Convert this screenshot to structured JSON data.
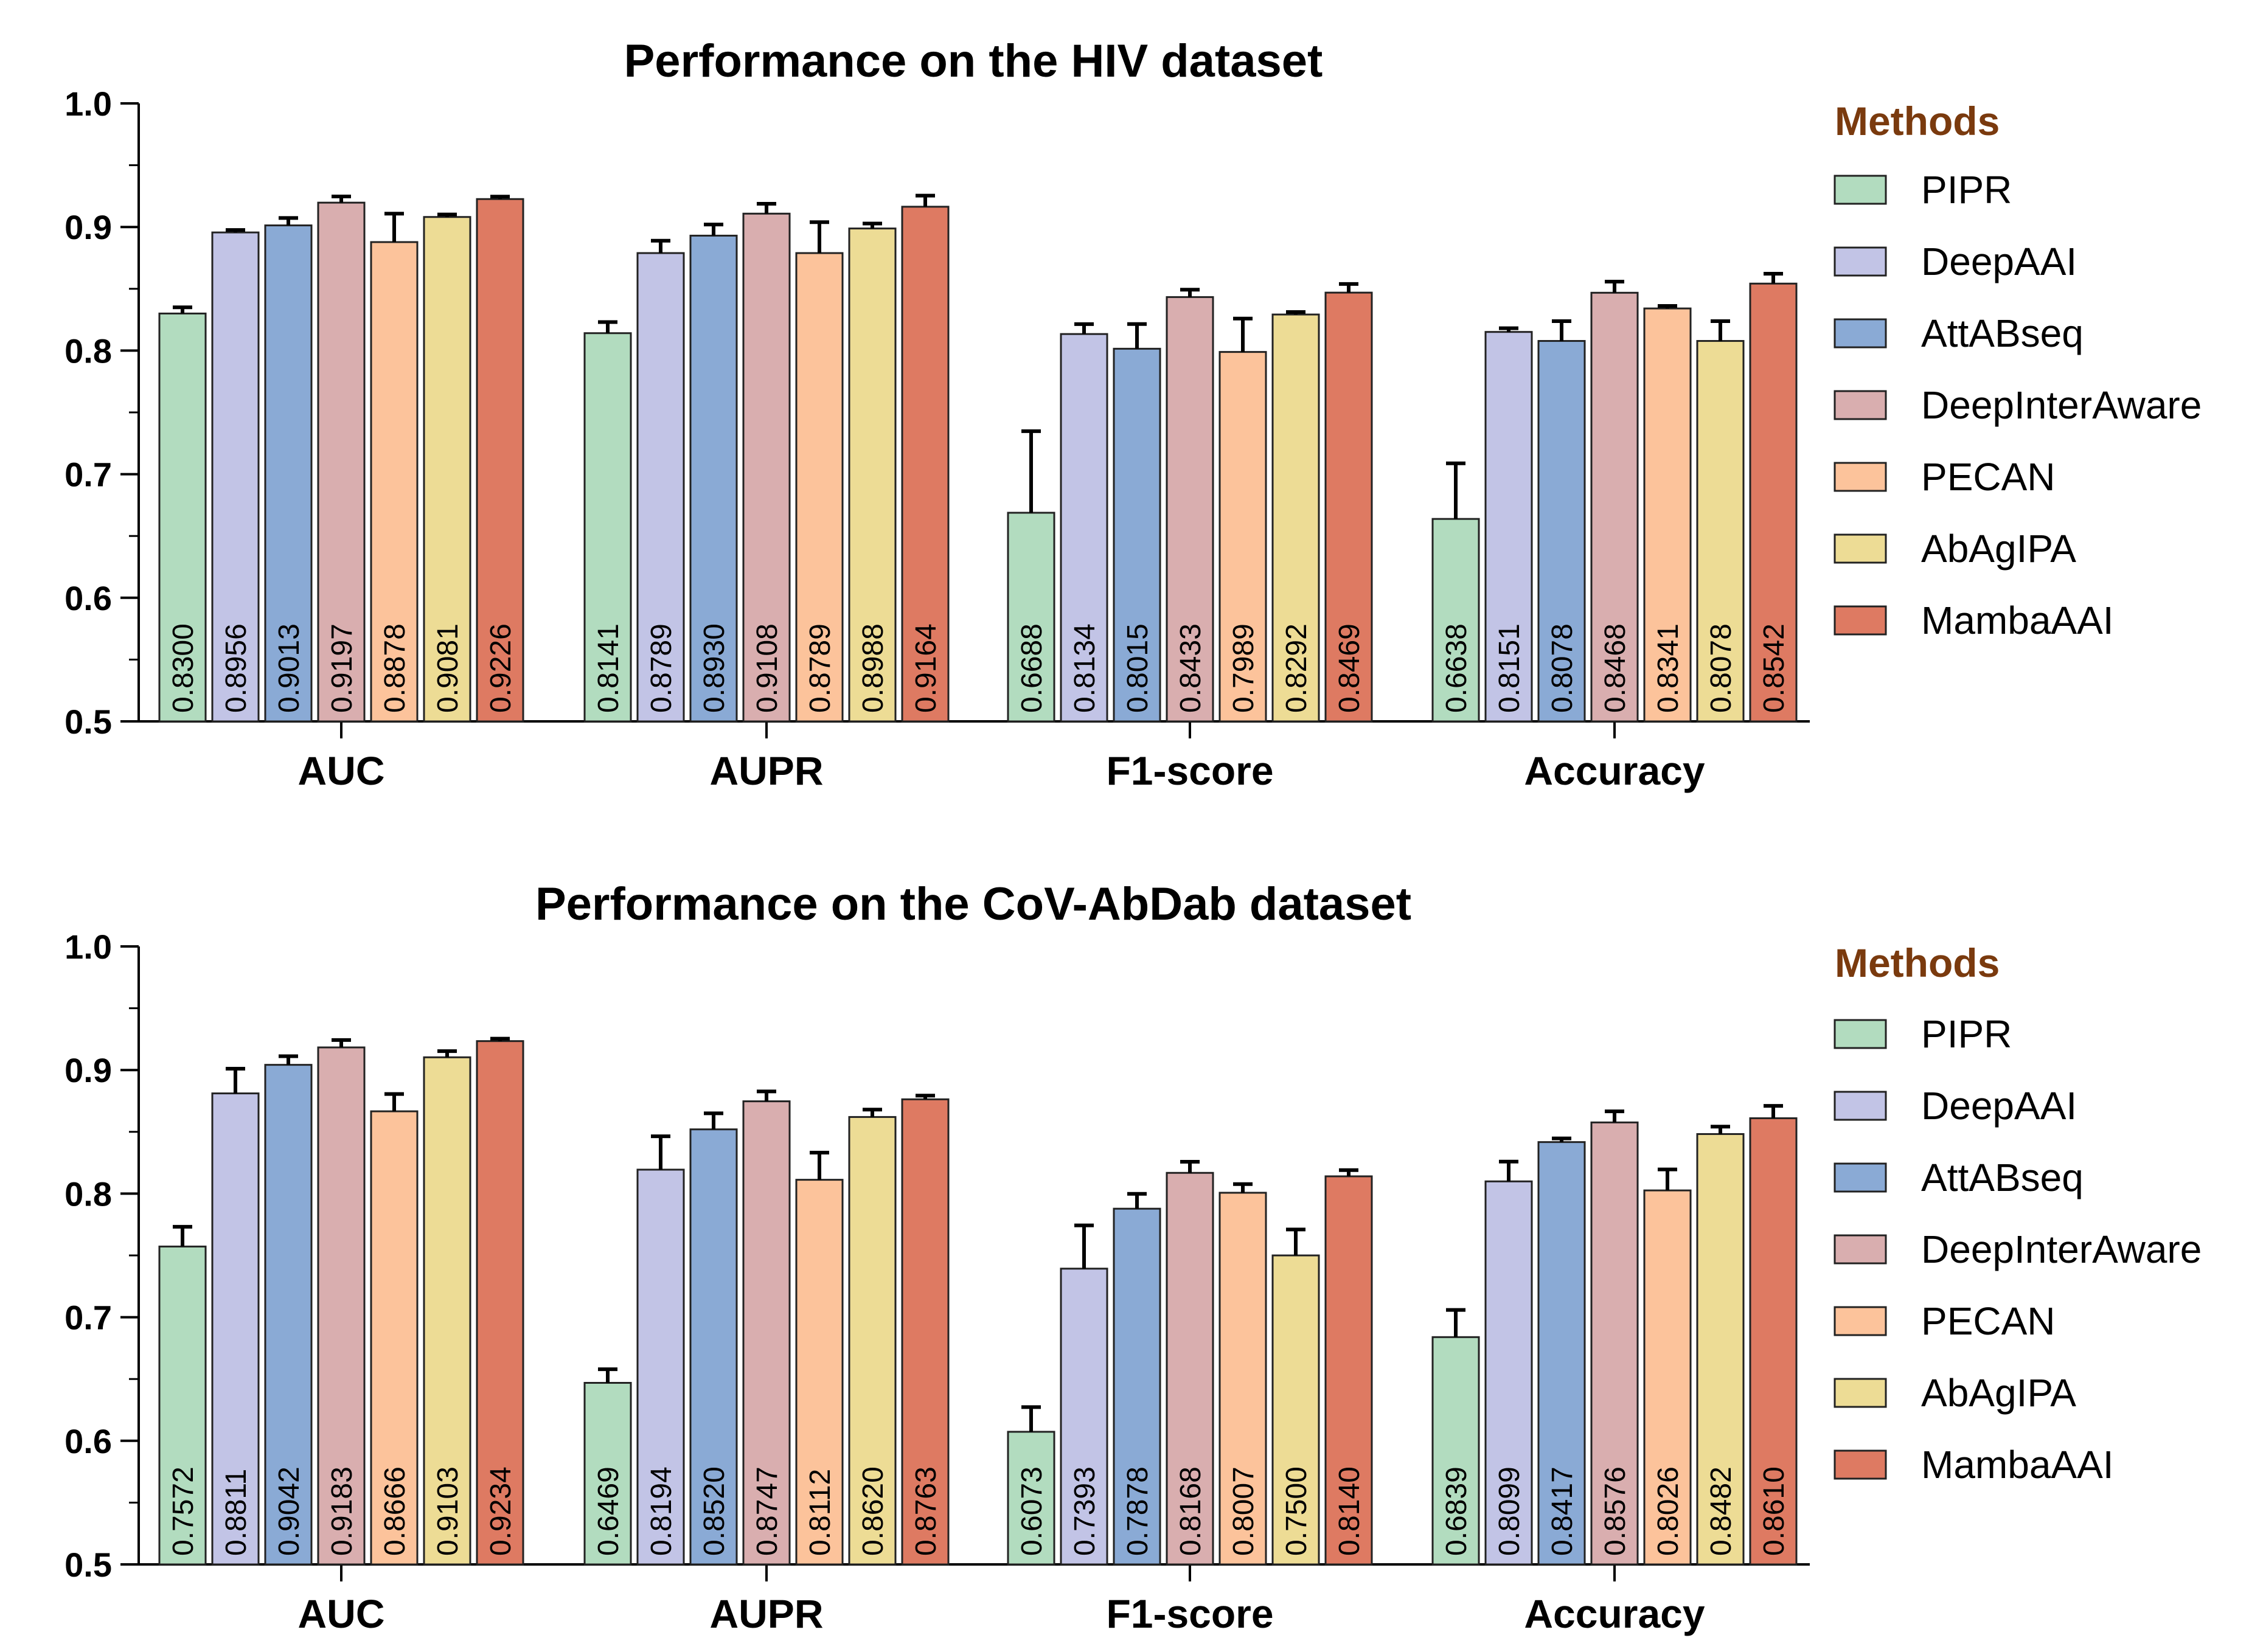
{
  "colors": {
    "PIPR": "#b2dcbf",
    "DeepAAI": "#c2c4e6",
    "AttABseq": "#8aaad5",
    "DeepInterAware": "#d9aeaf",
    "PECAN": "#fcc39b",
    "AbAgIPA": "#eddc95",
    "MambaAAI": "#de7a62",
    "legend_title": "#7a3a0e"
  },
  "chart_data": [
    {
      "type": "bar",
      "title": "Performance on the HIV dataset",
      "xlabel": "",
      "ylabel": "",
      "ylim": [
        0.5,
        1.0
      ],
      "yticks": [
        "0.5",
        "0.6",
        "0.7",
        "0.8",
        "0.9",
        "1.0"
      ],
      "categories": [
        "AUC",
        "AUPR",
        "F1-score",
        "Accuracy"
      ],
      "legend_title": "Methods",
      "legend_position": "right",
      "series": [
        {
          "name": "PIPR",
          "values": [
            0.83,
            0.8141,
            0.6688,
            0.6638
          ],
          "labels": [
            "0.8300",
            "0.8141",
            "0.6688",
            "0.6638"
          ],
          "errors": [
            0.005,
            0.009,
            0.066,
            0.045
          ]
        },
        {
          "name": "DeepAAI",
          "values": [
            0.8956,
            0.8789,
            0.8134,
            0.8151
          ],
          "labels": [
            "0.8956",
            "0.8789",
            "0.8134",
            "0.8151"
          ],
          "errors": [
            0.002,
            0.01,
            0.008,
            0.003
          ]
        },
        {
          "name": "AttABseq",
          "values": [
            0.9013,
            0.893,
            0.8015,
            0.8078
          ],
          "labels": [
            "0.9013",
            "0.8930",
            "0.8015",
            "0.8078"
          ],
          "errors": [
            0.006,
            0.009,
            0.02,
            0.016
          ]
        },
        {
          "name": "DeepInterAware",
          "values": [
            0.9197,
            0.9108,
            0.8433,
            0.8468
          ],
          "labels": [
            "0.9197",
            "0.9108",
            "0.8433",
            "0.8468"
          ],
          "errors": [
            0.005,
            0.008,
            0.006,
            0.009
          ]
        },
        {
          "name": "PECAN",
          "values": [
            0.8878,
            0.8789,
            0.7989,
            0.8341
          ],
          "labels": [
            "0.8878",
            "0.8789",
            "0.7989",
            "0.8341"
          ],
          "errors": [
            0.023,
            0.025,
            0.027,
            0.002
          ]
        },
        {
          "name": "AbAgIPA",
          "values": [
            0.9081,
            0.8988,
            0.8292,
            0.8078
          ],
          "labels": [
            "0.9081",
            "0.8988",
            "0.8292",
            "0.8078"
          ],
          "errors": [
            0.002,
            0.004,
            0.002,
            0.016
          ]
        },
        {
          "name": "MambaAAI",
          "values": [
            0.9226,
            0.9164,
            0.8469,
            0.8542
          ],
          "labels": [
            "0.9226",
            "0.9164",
            "0.8469",
            "0.8542"
          ],
          "errors": [
            0.002,
            0.009,
            0.007,
            0.008
          ]
        }
      ]
    },
    {
      "type": "bar",
      "title": "Performance on the CoV-AbDab dataset",
      "xlabel": "",
      "ylabel": "",
      "ylim": [
        0.5,
        1.0
      ],
      "yticks": [
        "0.5",
        "0.6",
        "0.7",
        "0.8",
        "0.9",
        "1.0"
      ],
      "categories": [
        "AUC",
        "AUPR",
        "F1-score",
        "Accuracy"
      ],
      "legend_title": "Methods",
      "legend_position": "right",
      "series": [
        {
          "name": "PIPR",
          "values": [
            0.7572,
            0.6469,
            0.6073,
            0.6839
          ],
          "labels": [
            "0.7572",
            "0.6469",
            "0.6073",
            "0.6839"
          ],
          "errors": [
            0.016,
            0.011,
            0.02,
            0.022
          ]
        },
        {
          "name": "DeepAAI",
          "values": [
            0.8811,
            0.8194,
            0.7393,
            0.8099
          ],
          "labels": [
            "0.8811",
            "0.8194",
            "0.7393",
            "0.8099"
          ],
          "errors": [
            0.02,
            0.027,
            0.035,
            0.016
          ]
        },
        {
          "name": "AttABseq",
          "values": [
            0.9042,
            0.852,
            0.7878,
            0.8417
          ],
          "labels": [
            "0.9042",
            "0.8520",
            "0.7878",
            "0.8417"
          ],
          "errors": [
            0.007,
            0.013,
            0.012,
            0.003
          ]
        },
        {
          "name": "DeepInterAware",
          "values": [
            0.9183,
            0.8747,
            0.8168,
            0.8576
          ],
          "labels": [
            "0.9183",
            "0.8747",
            "0.8168",
            "0.8576"
          ],
          "errors": [
            0.006,
            0.008,
            0.009,
            0.009
          ]
        },
        {
          "name": "PECAN",
          "values": [
            0.8666,
            0.8112,
            0.8007,
            0.8026
          ],
          "labels": [
            "0.8666",
            "0.8112",
            "0.8007",
            "0.8026"
          ],
          "errors": [
            0.014,
            0.022,
            0.007,
            0.017
          ]
        },
        {
          "name": "AbAgIPA",
          "values": [
            0.9103,
            0.862,
            0.75,
            0.8482
          ],
          "labels": [
            "0.9103",
            "0.8620",
            "0.7500",
            "0.8482"
          ],
          "errors": [
            0.005,
            0.006,
            0.021,
            0.006
          ]
        },
        {
          "name": "MambaAAI",
          "values": [
            0.9234,
            0.8763,
            0.814,
            0.861
          ],
          "labels": [
            "0.9234",
            "0.8763",
            "0.8140",
            "0.8610"
          ],
          "errors": [
            0.002,
            0.003,
            0.005,
            0.01
          ]
        }
      ]
    }
  ]
}
